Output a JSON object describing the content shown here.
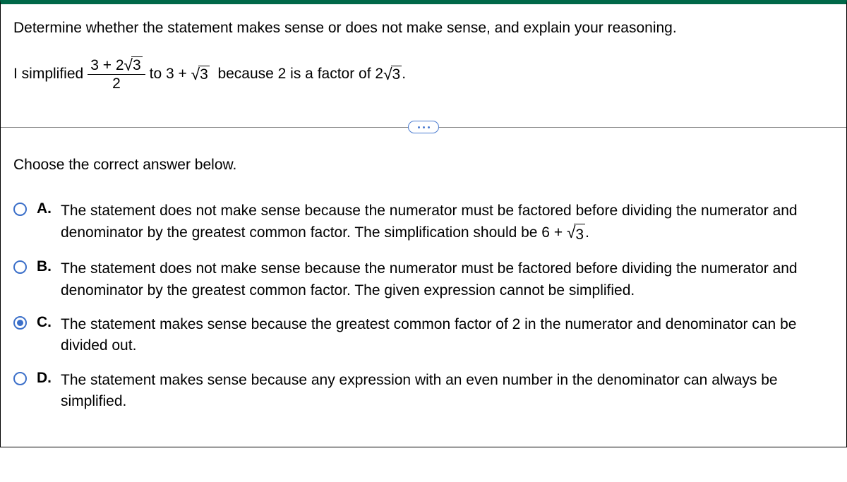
{
  "colors": {
    "top_border": "#006848",
    "radio_border": "#3b6fc9",
    "radio_fill": "#3b6fc9",
    "divider_pill_border": "#4a7bd0",
    "text": "#000000",
    "background": "#ffffff"
  },
  "question": {
    "prompt": "Determine whether the statement makes sense or does not make sense, and explain your reasoning.",
    "statement_prefix": "I simplified",
    "fraction": {
      "numerator_plain": "3 + 2",
      "numerator_radicand": "3",
      "denominator": "2"
    },
    "statement_mid1": "to 3 +",
    "result_radicand": "3",
    "statement_mid2": "because 2 is a factor of 2",
    "tail_radicand": "3",
    "statement_end": "."
  },
  "choose_label": "Choose the correct answer below.",
  "options": [
    {
      "letter": "A.",
      "text_pre": "The statement does not make sense because the numerator must be factored before dividing the numerator and denominator by the greatest common factor. The simplification should be 6 + ",
      "radicand": "3",
      "text_post": ".",
      "selected": false
    },
    {
      "letter": "B.",
      "text_pre": "The statement does not make sense because the numerator must be factored before dividing the numerator and denominator by the greatest common factor. The given expression cannot be simplified.",
      "radicand": null,
      "text_post": "",
      "selected": false
    },
    {
      "letter": "C.",
      "text_pre": "The statement makes sense because the greatest common factor of 2 in the numerator and denominator can be divided out.",
      "radicand": null,
      "text_post": "",
      "selected": true
    },
    {
      "letter": "D.",
      "text_pre": "The statement makes sense because any expression with an even number in the denominator can always be simplified.",
      "radicand": null,
      "text_post": "",
      "selected": false
    }
  ]
}
